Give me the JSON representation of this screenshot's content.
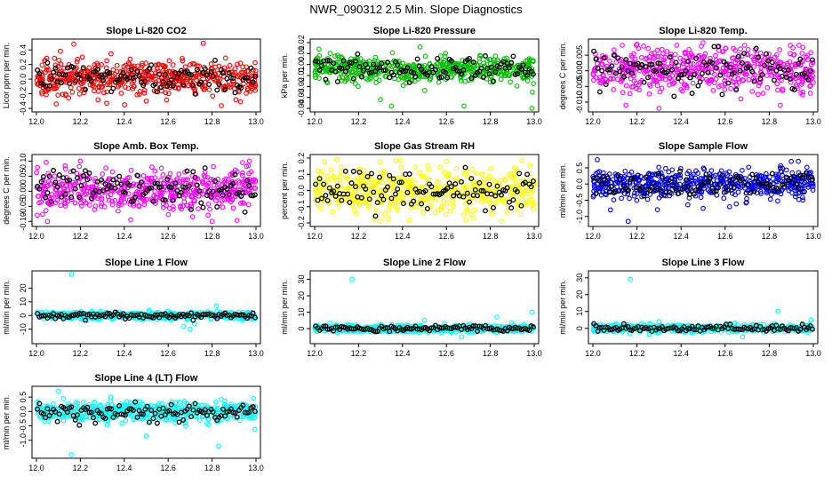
{
  "figure_title": "NWR_090312  2.5 Min. Slope Diagnostics",
  "chart_data": [
    {
      "type": "scatter",
      "title": "Slope Li-820 CO2",
      "ylabel": "Licor ppm per min.",
      "xlim": [
        12.0,
        13.0
      ],
      "x_ticks": [
        "12.0",
        "12.2",
        "12.4",
        "12.6",
        "12.8",
        "13.0"
      ],
      "ylim": [
        -0.4,
        0.5
      ],
      "y_ticks": [
        {
          "v": -0.4,
          "label": "-0.4"
        },
        {
          "v": -0.2,
          "label": "-0.2"
        },
        {
          "v": 0.0,
          "label": "0.0"
        },
        {
          "v": 0.2,
          "label": "0.2"
        },
        {
          "v": 0.4,
          "label": "0.4"
        }
      ],
      "point_color": "#ff0000",
      "bulk_center": 0.02,
      "bulk_spread": 0.11,
      "outliers": [
        [
          12.17,
          0.48
        ],
        [
          12.76,
          0.49
        ],
        [
          12.09,
          -0.34
        ],
        [
          12.32,
          -0.33
        ],
        [
          12.93,
          -0.31
        ],
        [
          12.5,
          -0.3
        ]
      ]
    },
    {
      "type": "scatter",
      "title": "Slope Li-820 Pressure",
      "ylabel": "kPa per min.",
      "xlim": [
        12.0,
        13.0
      ],
      "x_ticks": [
        "12.0",
        "12.2",
        "12.4",
        "12.6",
        "12.8",
        "13.0"
      ],
      "ylim": [
        -0.04,
        0.02
      ],
      "y_ticks": [
        {
          "v": -0.04,
          "label": "-0.04"
        },
        {
          "v": -0.03,
          "label": "-0.03"
        },
        {
          "v": -0.02,
          "label": "-0.02"
        },
        {
          "v": -0.01,
          "label": "-0.01"
        },
        {
          "v": 0.0,
          "label": "0.00"
        },
        {
          "v": 0.01,
          "label": "0.01"
        },
        {
          "v": 0.02,
          "label": "0.02"
        }
      ],
      "point_color": "#00c000",
      "bulk_center": -0.004,
      "bulk_spread": 0.006,
      "outliers": [
        [
          12.3,
          -0.032
        ],
        [
          12.35,
          -0.038
        ],
        [
          12.68,
          -0.038
        ],
        [
          12.99,
          -0.041
        ],
        [
          12.48,
          0.016
        ],
        [
          12.02,
          0.014
        ]
      ]
    },
    {
      "type": "scatter",
      "title": "Slope Li-820 Temp.",
      "ylabel": "degrees C per min.",
      "xlim": [
        12.0,
        13.0
      ],
      "x_ticks": [
        "12.0",
        "12.2",
        "12.4",
        "12.6",
        "12.8",
        "13.0"
      ],
      "ylim": [
        -0.012,
        0.009
      ],
      "y_ticks": [
        {
          "v": -0.01,
          "label": "-0.010"
        },
        {
          "v": -0.005,
          "label": "-0.005"
        },
        {
          "v": 0.0,
          "label": "0.000"
        },
        {
          "v": 0.005,
          "label": "0.005"
        }
      ],
      "point_color": "#ff00ff",
      "bulk_center": 0.0005,
      "bulk_spread": 0.0035,
      "outliers": [
        [
          12.15,
          -0.011
        ],
        [
          12.3,
          -0.012
        ],
        [
          12.5,
          0.009
        ],
        [
          12.85,
          -0.011
        ],
        [
          12.2,
          0.0085
        ]
      ]
    },
    {
      "type": "scatter",
      "title": "Slope Amb. Box Temp.",
      "ylabel": "degrees C per min.",
      "xlim": [
        12.0,
        13.0
      ],
      "x_ticks": [
        "12.0",
        "12.2",
        "12.4",
        "12.6",
        "12.8",
        "13.0"
      ],
      "ylim": [
        -0.105,
        0.11
      ],
      "y_ticks": [
        {
          "v": -0.1,
          "label": "-0.10"
        },
        {
          "v": -0.05,
          "label": "-0.05"
        },
        {
          "v": 0.0,
          "label": "0.00"
        },
        {
          "v": 0.05,
          "label": "0.05"
        },
        {
          "v": 0.1,
          "label": "0.10"
        }
      ],
      "point_color": "#ff00ff",
      "bulk_center": 0.005,
      "bulk_spread": 0.035,
      "outliers": [
        [
          12.2,
          0.1
        ],
        [
          12.97,
          0.1
        ],
        [
          12.05,
          -0.1
        ],
        [
          12.43,
          -0.095
        ],
        [
          12.8,
          -0.1
        ]
      ]
    },
    {
      "type": "scatter",
      "title": "Slope Gas Stream RH",
      "ylabel": "percent per min.",
      "xlim": [
        12.0,
        13.0
      ],
      "x_ticks": [
        "12.0",
        "12.2",
        "12.4",
        "12.6",
        "12.8",
        "13.0"
      ],
      "ylim": [
        -0.2,
        0.2
      ],
      "y_ticks": [
        {
          "v": -0.2,
          "label": "-0.2"
        },
        {
          "v": -0.1,
          "label": "-0.1"
        },
        {
          "v": 0.0,
          "label": "0.0"
        },
        {
          "v": 0.1,
          "label": "0.1"
        },
        {
          "v": 0.2,
          "label": "0.2"
        }
      ],
      "point_color": "#ffff00",
      "bulk_center": 0.0,
      "bulk_spread": 0.065,
      "outliers": [
        [
          12.1,
          0.19
        ],
        [
          12.3,
          -0.19
        ],
        [
          12.6,
          0.18
        ],
        [
          12.85,
          -0.19
        ]
      ]
    },
    {
      "type": "scatter",
      "title": "Slope Sample Flow",
      "ylabel": "ml/min per min.",
      "xlim": [
        12.0,
        13.0
      ],
      "x_ticks": [
        "12.0",
        "12.2",
        "12.4",
        "12.6",
        "12.8",
        "13.0"
      ],
      "ylim": [
        -1.2,
        0.8
      ],
      "y_ticks": [
        {
          "v": -1.0,
          "label": "-1.0"
        },
        {
          "v": -0.5,
          "label": "-0.5"
        },
        {
          "v": 0.0,
          "label": "0.0"
        },
        {
          "v": 0.5,
          "label": "0.5"
        }
      ],
      "point_color": "#0000ff",
      "bulk_center": 0.0,
      "bulk_spread": 0.22,
      "outliers": [
        [
          12.08,
          -0.8
        ],
        [
          12.16,
          -1.15
        ],
        [
          12.5,
          -0.75
        ],
        [
          12.62,
          -0.7
        ],
        [
          12.9,
          0.7
        ],
        [
          12.02,
          0.75
        ]
      ]
    },
    {
      "type": "scatter",
      "title": "Slope Line 1 Flow",
      "ylabel": "ml/min per min.",
      "xlim": [
        12.0,
        13.0
      ],
      "x_ticks": [
        "12.0",
        "12.2",
        "12.4",
        "12.6",
        "12.8",
        "13.0"
      ],
      "ylim": [
        -18,
        30
      ],
      "y_ticks": [
        {
          "v": -10,
          "label": "-10"
        },
        {
          "v": 0,
          "label": "0"
        },
        {
          "v": 10,
          "label": "10"
        },
        {
          "v": 20,
          "label": "20"
        }
      ],
      "point_color": "#00ffff",
      "bulk_center": 0.0,
      "bulk_spread": 1.3,
      "outliers": [
        [
          12.16,
          30
        ],
        [
          12.67,
          -8
        ],
        [
          12.7,
          -10
        ],
        [
          12.72,
          -6
        ],
        [
          12.82,
          7
        ]
      ]
    },
    {
      "type": "scatter",
      "title": "Slope Line 2 Flow",
      "ylabel": "ml/min per min.",
      "xlim": [
        12.0,
        13.0
      ],
      "x_ticks": [
        "12.0",
        "12.2",
        "12.4",
        "12.6",
        "12.8",
        "13.0"
      ],
      "ylim": [
        -7,
        33
      ],
      "y_ticks": [
        {
          "v": 0,
          "label": "0"
        },
        {
          "v": 10,
          "label": "10"
        },
        {
          "v": 20,
          "label": "20"
        },
        {
          "v": 30,
          "label": "30"
        }
      ],
      "point_color": "#00ffff",
      "bulk_center": 0.0,
      "bulk_spread": 1.1,
      "outliers": [
        [
          12.17,
          30
        ],
        [
          12.99,
          10
        ],
        [
          12.83,
          7
        ],
        [
          12.67,
          -5
        ],
        [
          12.5,
          5
        ]
      ]
    },
    {
      "type": "scatter",
      "title": "Slope Line 3 Flow",
      "ylabel": "ml/min per min.",
      "xlim": [
        12.0,
        13.0
      ],
      "x_ticks": [
        "12.0",
        "12.2",
        "12.4",
        "12.6",
        "12.8",
        "13.0"
      ],
      "ylim": [
        -7,
        32
      ],
      "y_ticks": [
        {
          "v": 0,
          "label": "0"
        },
        {
          "v": 10,
          "label": "10"
        },
        {
          "v": 20,
          "label": "20"
        },
        {
          "v": 30,
          "label": "30"
        }
      ],
      "point_color": "#00ffff",
      "bulk_center": 0.0,
      "bulk_spread": 1.1,
      "outliers": [
        [
          12.17,
          29
        ],
        [
          12.84,
          10
        ],
        [
          12.99,
          5
        ],
        [
          12.68,
          -5
        ],
        [
          12.3,
          4
        ]
      ]
    },
    {
      "type": "scatter",
      "title": "Slope Line 4 (LT) Flow",
      "ylabel": "ml/min per min.",
      "xlim": [
        12.0,
        13.0
      ],
      "x_ticks": [
        "12.0",
        "12.2",
        "12.4",
        "12.6",
        "12.8",
        "13.0"
      ],
      "ylim": [
        -1.5,
        0.75
      ],
      "y_ticks": [
        {
          "v": -1.0,
          "label": "-1.0"
        },
        {
          "v": -0.5,
          "label": "-0.5"
        },
        {
          "v": 0.0,
          "label": "0.0"
        },
        {
          "v": 0.5,
          "label": "0.5"
        }
      ],
      "point_color": "#00ffff",
      "bulk_center": 0.0,
      "bulk_spread": 0.17,
      "outliers": [
        [
          12.16,
          -1.5
        ],
        [
          12.5,
          -0.85
        ],
        [
          12.83,
          -1.2
        ],
        [
          12.68,
          -0.5
        ],
        [
          12.1,
          0.7
        ]
      ]
    }
  ]
}
